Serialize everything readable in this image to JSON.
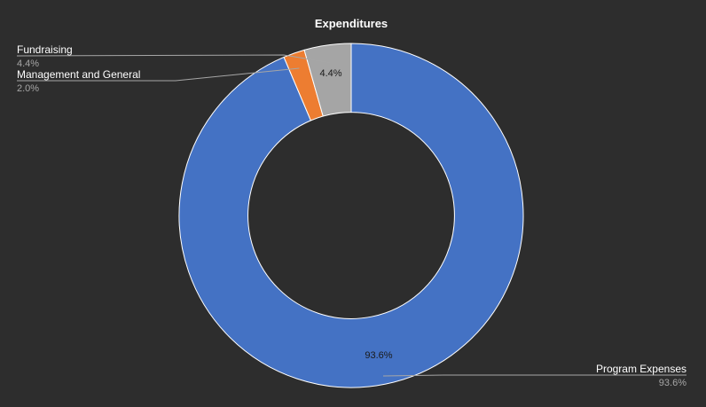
{
  "chart_data": {
    "type": "pie",
    "title": "Expenditures",
    "categories": [
      "Program Expenses",
      "Management and General",
      "Fundraising"
    ],
    "values": [
      93.6,
      2.0,
      4.4
    ],
    "value_labels": [
      "93.6%",
      "2.0%",
      "4.4%"
    ],
    "colors": [
      "#4472c4",
      "#ed7d31",
      "#a5a5a5"
    ],
    "hole": 0.6,
    "legend": "none",
    "callout_labels": true
  }
}
